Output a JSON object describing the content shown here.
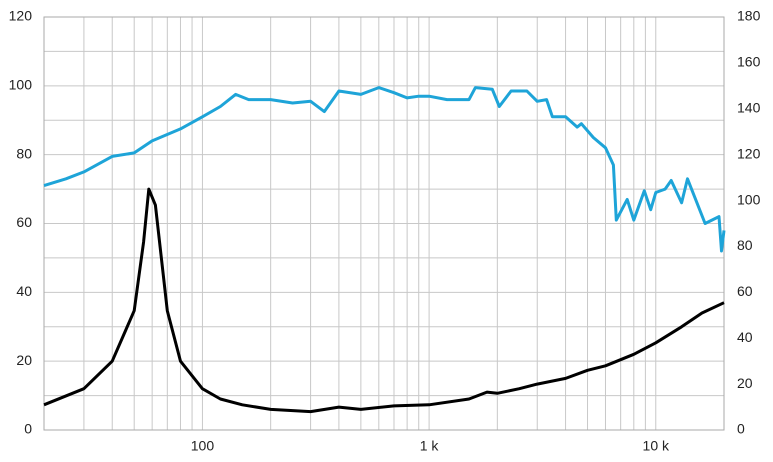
{
  "chart_data": {
    "type": "line",
    "xscale": "log",
    "xlim": [
      20,
      20000
    ],
    "xticks": [
      {
        "value": 100,
        "label": "100"
      },
      {
        "value": 1000,
        "label": "1 k"
      },
      {
        "value": 10000,
        "label": "10 k"
      }
    ],
    "xminorticks": [
      30,
      40,
      50,
      60,
      70,
      80,
      90,
      200,
      300,
      400,
      500,
      600,
      700,
      800,
      900,
      2000,
      3000,
      4000,
      5000,
      6000,
      7000,
      8000,
      9000
    ],
    "ylim": [
      0,
      120
    ],
    "yticks": [
      0,
      20,
      40,
      60,
      80,
      100,
      120
    ],
    "yminorticks": [
      10,
      30,
      50,
      70,
      90,
      110
    ],
    "y2lim": [
      0,
      180
    ],
    "y2ticks": [
      0,
      20,
      40,
      60,
      80,
      100,
      120,
      140,
      160,
      180
    ],
    "grid": true,
    "series": [
      {
        "color": "#1ea4d8",
        "x": [
          20,
          25,
          30,
          40,
          50,
          60,
          80,
          100,
          120,
          140,
          160,
          200,
          250,
          300,
          345,
          400,
          500,
          600,
          700,
          800,
          900,
          1000,
          1200,
          1500,
          1600,
          1900,
          2040,
          2300,
          2700,
          3000,
          3300,
          3500,
          4000,
          4500,
          4700,
          5300,
          6000,
          6500,
          6700,
          7480,
          8000,
          8900,
          9500,
          10000,
          11000,
          11700,
          13000,
          13800,
          16500,
          19000,
          19500,
          20000
        ],
        "values": [
          71,
          73,
          75,
          79.5,
          80.5,
          84,
          87.5,
          91,
          94,
          97.5,
          96,
          96,
          95,
          95.5,
          92.5,
          98.5,
          97.5,
          99.5,
          98,
          96.5,
          97,
          97,
          96,
          96,
          99.5,
          99,
          94,
          98.5,
          98.5,
          95.5,
          96,
          91,
          91,
          88,
          89,
          85,
          82,
          77,
          61,
          67,
          61,
          69.5,
          64,
          69,
          70,
          72.5,
          66,
          73,
          60,
          62,
          52,
          58
        ]
      },
      {
        "color": "#000000",
        "axis": "y2",
        "x": [
          20,
          30,
          40,
          50,
          55,
          58,
          62,
          70,
          80,
          100,
          120,
          150,
          200,
          300,
          400,
          500,
          700,
          1000,
          1500,
          1800,
          2000,
          2500,
          3000,
          4000,
          5000,
          6000,
          8000,
          10000,
          13000,
          16000,
          20000
        ],
        "values": [
          11,
          18,
          30,
          52,
          82,
          105,
          98,
          52,
          30,
          18,
          13.5,
          11,
          9,
          8,
          10,
          9,
          10.5,
          11,
          13.5,
          16.5,
          16,
          18,
          20,
          22.5,
          26,
          28,
          33,
          38,
          45,
          51,
          55.5
        ]
      }
    ]
  }
}
